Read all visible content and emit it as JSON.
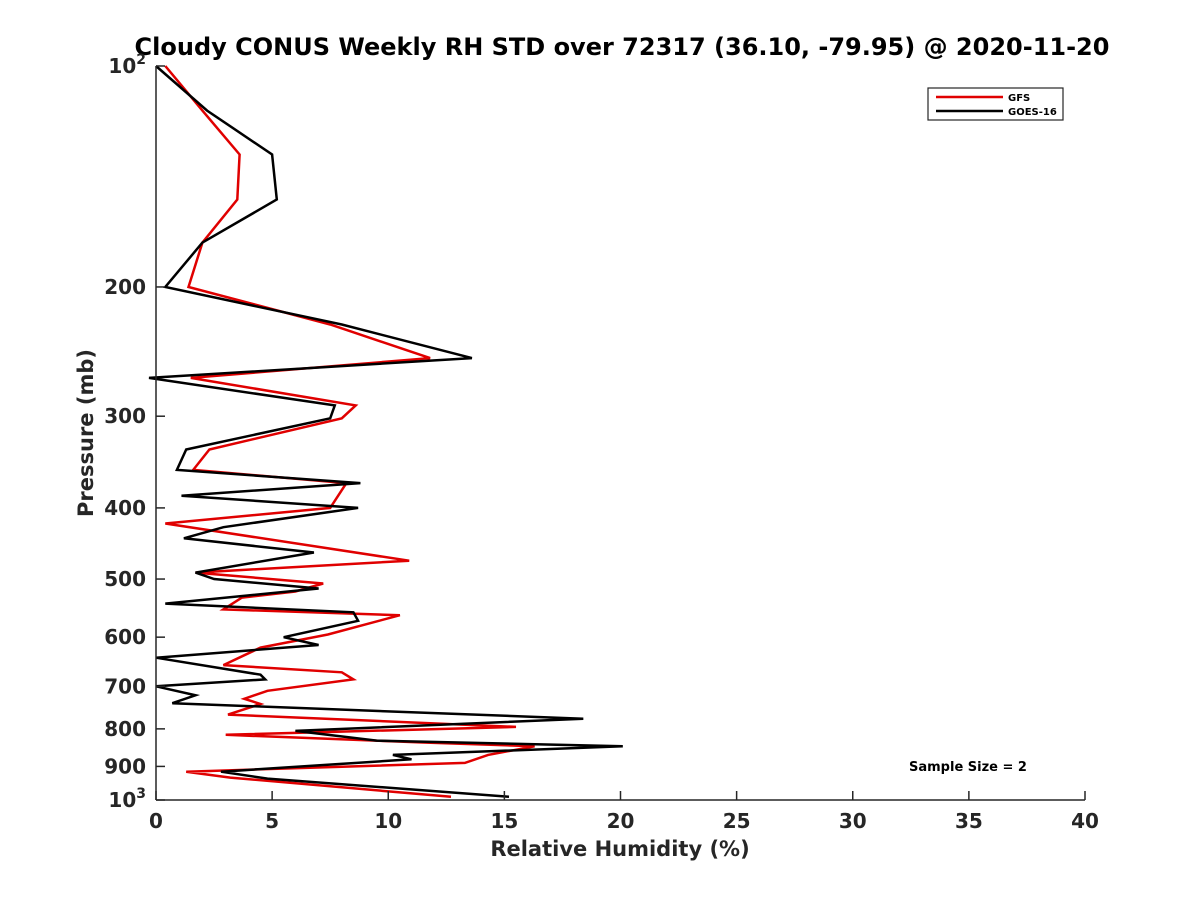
{
  "chart_data": {
    "type": "line",
    "title": "Cloudy CONUS Weekly RH STD over 72317 (36.10, -79.95) @ 2020-11-20",
    "xlabel": "Relative Humidity (%)",
    "ylabel": "Pressure (mb)",
    "xlim": [
      0,
      40
    ],
    "ylim": [
      100,
      1000
    ],
    "y_scale": "log",
    "y_reversed": true,
    "grid": false,
    "legend_position": "top-right",
    "x_ticks": [
      0,
      5,
      10,
      15,
      20,
      25,
      30,
      35,
      40
    ],
    "y_ticks": [
      {
        "value": 100,
        "label": "10",
        "sup": "2"
      },
      {
        "value": 200,
        "label": "200",
        "sup": ""
      },
      {
        "value": 300,
        "label": "300",
        "sup": ""
      },
      {
        "value": 400,
        "label": "400",
        "sup": ""
      },
      {
        "value": 500,
        "label": "500",
        "sup": ""
      },
      {
        "value": 600,
        "label": "600",
        "sup": ""
      },
      {
        "value": 700,
        "label": "700",
        "sup": ""
      },
      {
        "value": 800,
        "label": "800",
        "sup": ""
      },
      {
        "value": 900,
        "label": "900",
        "sup": ""
      },
      {
        "value": 1000,
        "label": "10",
        "sup": "3"
      }
    ],
    "annotation": "Sample Size = 2",
    "series": [
      {
        "name": "GFS",
        "color": "#e00000",
        "points": [
          [
            0.4,
            100
          ],
          [
            2.0,
            115
          ],
          [
            3.6,
            132
          ],
          [
            3.5,
            152
          ],
          [
            2.0,
            174
          ],
          [
            1.4,
            200
          ],
          [
            7.5,
            225
          ],
          [
            11.8,
            250
          ],
          [
            1.5,
            266
          ],
          [
            8.6,
            290
          ],
          [
            8.0,
            302
          ],
          [
            2.3,
            333
          ],
          [
            1.6,
            355
          ],
          [
            8.2,
            370
          ],
          [
            7.5,
            400
          ],
          [
            0.4,
            420
          ],
          [
            10.9,
            472
          ],
          [
            1.7,
            490
          ],
          [
            7.2,
            507
          ],
          [
            6.0,
            520
          ],
          [
            3.7,
            530
          ],
          [
            2.9,
            550
          ],
          [
            10.5,
            560
          ],
          [
            7.4,
            595
          ],
          [
            4.5,
            620
          ],
          [
            2.9,
            655
          ],
          [
            8.0,
            670
          ],
          [
            8.5,
            685
          ],
          [
            4.8,
            710
          ],
          [
            3.8,
            728
          ],
          [
            4.5,
            740
          ],
          [
            3.1,
            765
          ],
          [
            15.5,
            795
          ],
          [
            3.0,
            815
          ],
          [
            11.5,
            835
          ],
          [
            16.3,
            845
          ],
          [
            14.3,
            868
          ],
          [
            13.3,
            890
          ],
          [
            1.3,
            915
          ],
          [
            3.2,
            932
          ],
          [
            12.7,
            990
          ]
        ]
      },
      {
        "name": "GOES-16",
        "color": "#000000",
        "points": [
          [
            0.0,
            100
          ],
          [
            2.2,
            115
          ],
          [
            5.0,
            132
          ],
          [
            5.2,
            152
          ],
          [
            2.0,
            174
          ],
          [
            0.4,
            200
          ],
          [
            8.0,
            225
          ],
          [
            13.6,
            250
          ],
          [
            -0.3,
            266
          ],
          [
            7.7,
            290
          ],
          [
            7.5,
            302
          ],
          [
            1.3,
            333
          ],
          [
            0.9,
            355
          ],
          [
            8.8,
            370
          ],
          [
            1.1,
            385
          ],
          [
            8.7,
            400
          ],
          [
            2.9,
            425
          ],
          [
            1.2,
            440
          ],
          [
            6.8,
            460
          ],
          [
            1.7,
            490
          ],
          [
            2.5,
            500
          ],
          [
            7.0,
            515
          ],
          [
            0.4,
            540
          ],
          [
            8.5,
            555
          ],
          [
            8.7,
            570
          ],
          [
            5.5,
            600
          ],
          [
            7.0,
            615
          ],
          [
            0.0,
            640
          ],
          [
            4.5,
            675
          ],
          [
            4.7,
            685
          ],
          [
            0.0,
            700
          ],
          [
            1.7,
            720
          ],
          [
            0.7,
            738
          ],
          [
            18.4,
            775
          ],
          [
            6.0,
            805
          ],
          [
            9.5,
            830
          ],
          [
            20.1,
            845
          ],
          [
            10.2,
            868
          ],
          [
            11.0,
            880
          ],
          [
            2.8,
            915
          ],
          [
            4.8,
            935
          ],
          [
            15.2,
            990
          ]
        ]
      }
    ]
  }
}
